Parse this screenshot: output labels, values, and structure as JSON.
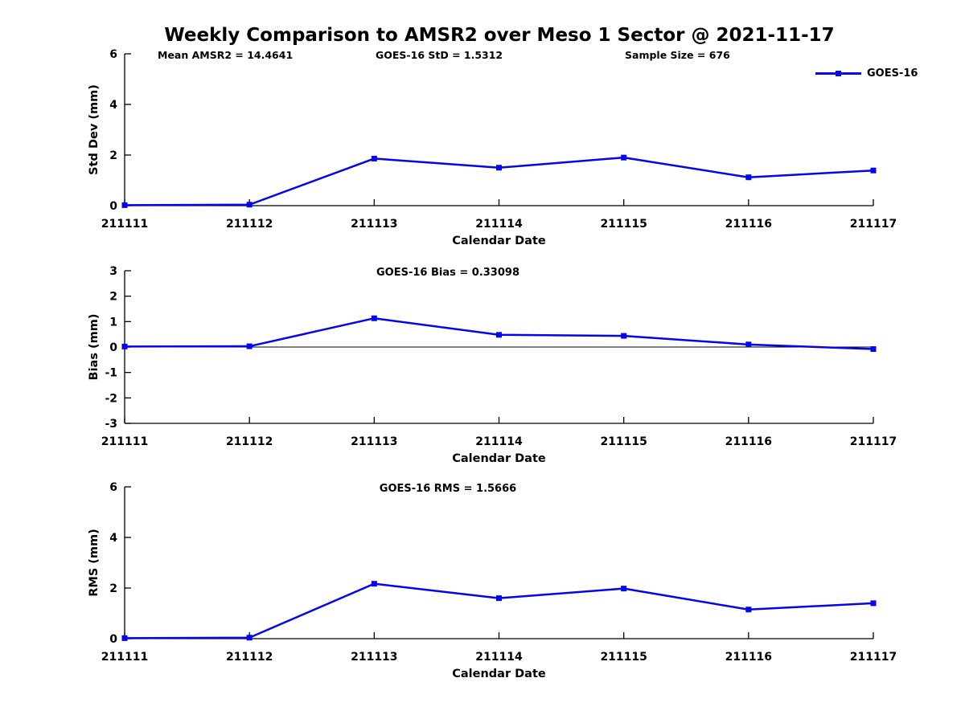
{
  "title": "Weekly Comparison to AMSR2 over Meso 1 Sector @ 2021-11-17",
  "header_stats": {
    "mean_amsr2": "Mean AMSR2 = 14.4641",
    "goes16_std": "GOES-16 StD = 1.5312",
    "sample_size": "Sample Size = 676"
  },
  "legend": {
    "label": "GOES-16",
    "marker": "filled-square",
    "position": "top-right"
  },
  "colors": {
    "line": "#0404ee",
    "axis": "#000000",
    "text": "#000000",
    "background": "#ffffff"
  },
  "chart_data": [
    {
      "type": "line",
      "title": "",
      "ylabel": "Std Dev (mm)",
      "xlabel": "Calendar Date",
      "categories": [
        "211111",
        "211112",
        "211113",
        "211114",
        "211115",
        "211116",
        "211117"
      ],
      "series": [
        {
          "name": "GOES-16",
          "values": [
            0.02,
            0.04,
            1.86,
            1.5,
            1.9,
            1.12,
            1.39
          ]
        }
      ],
      "ylim": [
        0,
        6
      ],
      "yticks": [
        0,
        2,
        4,
        6
      ],
      "zero_line": false,
      "grid": false,
      "legend_position": "top-right"
    },
    {
      "type": "line",
      "title": "GOES-16 Bias  = 0.33098",
      "ylabel": "Bias (mm)",
      "xlabel": "Calendar Date",
      "categories": [
        "211111",
        "211112",
        "211113",
        "211114",
        "211115",
        "211116",
        "211117"
      ],
      "series": [
        {
          "name": "GOES-16",
          "values": [
            0.02,
            0.03,
            1.13,
            0.48,
            0.44,
            0.1,
            -0.08
          ]
        }
      ],
      "ylim": [
        -3,
        3
      ],
      "yticks": [
        -3,
        -2,
        -1,
        0,
        1,
        2,
        3
      ],
      "zero_line": true,
      "grid": false,
      "legend_position": "none"
    },
    {
      "type": "line",
      "title": "GOES-16 RMS = 1.5666",
      "ylabel": "RMS (mm)",
      "xlabel": "Calendar Date",
      "categories": [
        "211111",
        "211112",
        "211113",
        "211114",
        "211115",
        "211116",
        "211117"
      ],
      "series": [
        {
          "name": "GOES-16",
          "values": [
            0.02,
            0.04,
            2.17,
            1.6,
            1.98,
            1.15,
            1.4
          ]
        }
      ],
      "ylim": [
        0,
        6
      ],
      "yticks": [
        0,
        2,
        4,
        6
      ],
      "zero_line": false,
      "grid": false,
      "legend_position": "none"
    }
  ]
}
